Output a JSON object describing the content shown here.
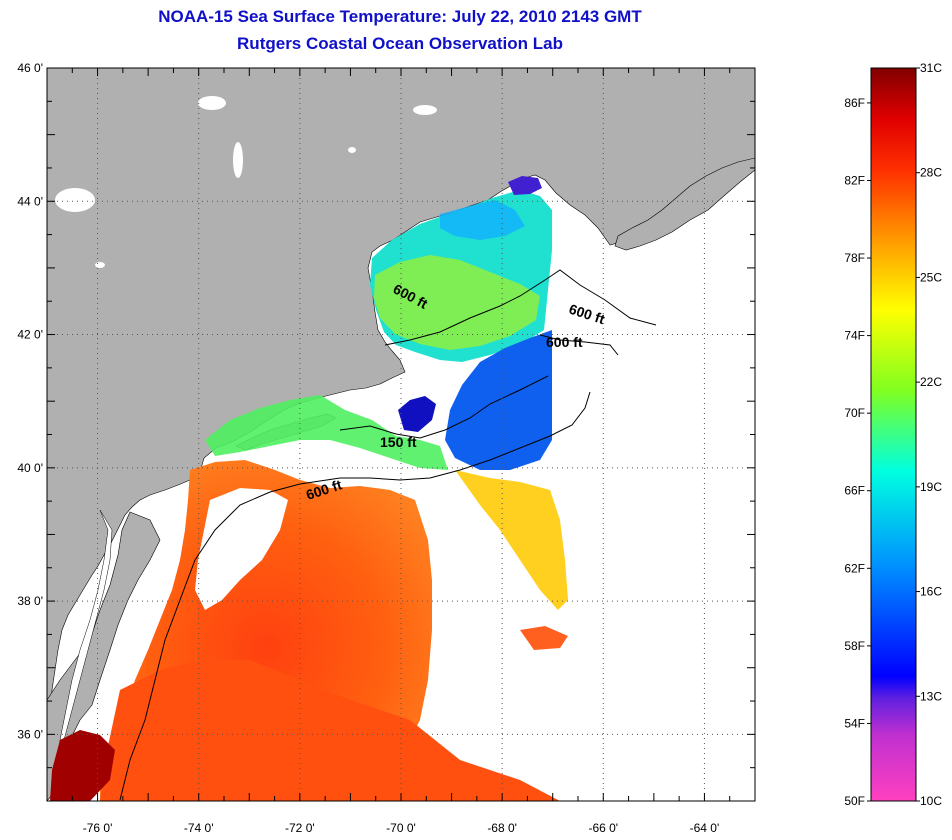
{
  "title": {
    "line1": "NOAA-15 Sea Surface Temperature:  July 22, 2010 2143 GMT",
    "line2": "Rutgers Coastal Ocean Observation Lab"
  },
  "map": {
    "lat_labels": [
      "46 0'",
      "44 0'",
      "42 0'",
      "40 0'",
      "38 0'",
      "36 0'"
    ],
    "lat_values": [
      46,
      44,
      42,
      40,
      38,
      36
    ],
    "lon_labels": [
      "-76 0'",
      "-74 0'",
      "-72 0'",
      "-70 0'",
      "-68 0'",
      "-66 0'",
      "-64 0'"
    ],
    "lon_values": [
      -76,
      -74,
      -72,
      -70,
      -68,
      -66,
      -64
    ],
    "lat_range": [
      35,
      46
    ],
    "lon_range": [
      -77,
      -63
    ],
    "contours": [
      "600 ft",
      "600 ft",
      "600 ft",
      "150 ft",
      "600 ft"
    ],
    "colors": {
      "land": "#b0b0b0",
      "water_no_data": "#ffffff",
      "coast": "#000000"
    }
  },
  "colorbar": {
    "fahrenheit_labels": [
      "86F",
      "82F",
      "78F",
      "74F",
      "70F",
      "66F",
      "62F",
      "58F",
      "54F",
      "50F"
    ],
    "fahrenheit_values": [
      86,
      82,
      78,
      74,
      70,
      66,
      62,
      58,
      54,
      50
    ],
    "celsius_labels": [
      "31C",
      "28C",
      "25C",
      "22C",
      "19C",
      "16C",
      "13C",
      "10C"
    ],
    "celsius_values": [
      31,
      28,
      25,
      22,
      19,
      16,
      13,
      10
    ],
    "range_f": [
      50,
      87.8
    ],
    "stops": [
      {
        "temp_c": 10,
        "color": "#ff40c0"
      },
      {
        "temp_c": 12,
        "color": "#8020c0"
      },
      {
        "temp_c": 13,
        "color": "#0000ff"
      },
      {
        "temp_c": 16,
        "color": "#0090ff"
      },
      {
        "temp_c": 19,
        "color": "#00ffe0"
      },
      {
        "temp_c": 22,
        "color": "#80ff20"
      },
      {
        "temp_c": 24,
        "color": "#ffff00"
      },
      {
        "temp_c": 26,
        "color": "#ff9000"
      },
      {
        "temp_c": 28,
        "color": "#ff3000"
      },
      {
        "temp_c": 29.5,
        "color": "#e00000"
      },
      {
        "temp_c": 31,
        "color": "#800000"
      }
    ]
  }
}
